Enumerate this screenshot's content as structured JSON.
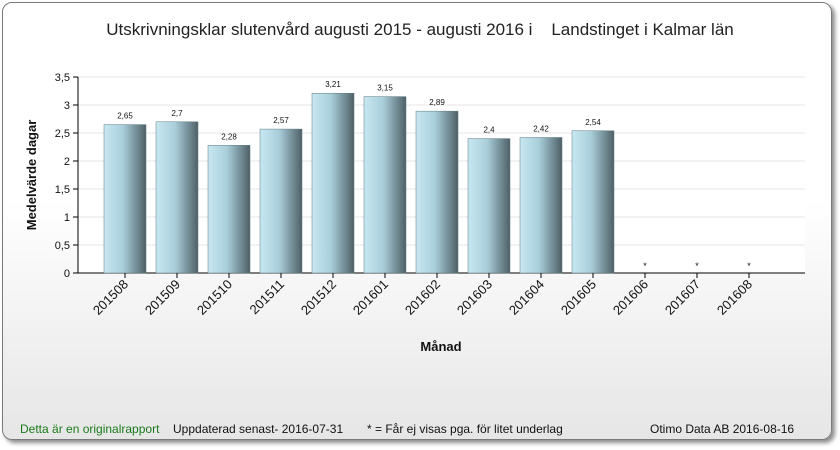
{
  "chart_data": {
    "type": "bar",
    "title": "Utskrivningsklar slutenvård augusti 2015 - augusti 2016 i    Landstinget i Kalmar län",
    "xlabel": "Månad",
    "ylabel": "Medelvärde dagar",
    "ylim": [
      0,
      3.5
    ],
    "yticks": [
      "0",
      "0,5",
      "1",
      "1,5",
      "2",
      "2,5",
      "3",
      "3,5"
    ],
    "categories": [
      "201508",
      "201509",
      "201510",
      "201511",
      "201512",
      "201601",
      "201602",
      "201603",
      "201604",
      "201605",
      "201606",
      "201607",
      "201608"
    ],
    "values": [
      2.65,
      2.7,
      2.28,
      2.57,
      3.21,
      3.15,
      2.89,
      2.4,
      2.42,
      2.54,
      null,
      null,
      null
    ],
    "data_labels": [
      "2,65",
      "2,7",
      "2,28",
      "2,57",
      "3,21",
      "3,15",
      "2,89",
      "2,4",
      "2,42",
      "2,54",
      "*",
      "*",
      "*"
    ],
    "grid": true,
    "legend": "none"
  },
  "footer": {
    "note": "Detta är en originalrapport",
    "updated": "Uppdaterad senast- 2016-07-31",
    "legend_note": "* = Får ej visas pga. för litet underlag",
    "source": "Otimo Data AB 2016-08-16"
  },
  "colors": {
    "bar_light": "#c5e6f0",
    "bar_dark": "#4e6068",
    "note_green": "#1a7a1a"
  }
}
